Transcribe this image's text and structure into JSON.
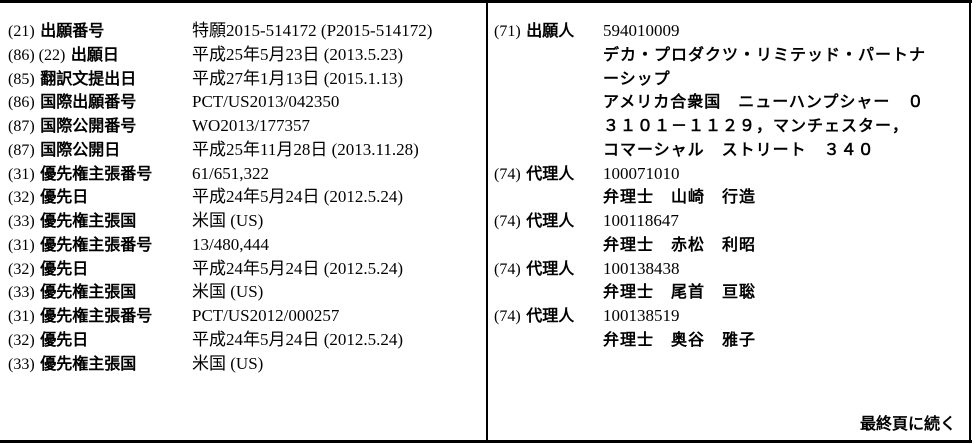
{
  "left_entries": [
    {
      "code": "(21)",
      "label": "出願番号",
      "value": "特願2015-514172 (P2015-514172)"
    },
    {
      "code": "(86) (22)",
      "label": "出願日",
      "value": "平成25年5月23日 (2013.5.23)"
    },
    {
      "code": "(85)",
      "label": "翻訳文提出日",
      "value": "平成27年1月13日 (2015.1.13)"
    },
    {
      "code": "(86)",
      "label": "国際出願番号",
      "value": "PCT/US2013/042350"
    },
    {
      "code": "(87)",
      "label": "国際公開番号",
      "value": "WO2013/177357"
    },
    {
      "code": "(87)",
      "label": "国際公開日",
      "value": "平成25年11月28日 (2013.11.28)"
    },
    {
      "code": "(31)",
      "label": "優先権主張番号",
      "value": "61/651,322"
    },
    {
      "code": "(32)",
      "label": "優先日",
      "value": "平成24年5月24日 (2012.5.24)"
    },
    {
      "code": "(33)",
      "label": "優先権主張国",
      "value": "米国 (US)"
    },
    {
      "code": "(31)",
      "label": "優先権主張番号",
      "value": "13/480,444"
    },
    {
      "code": "(32)",
      "label": "優先日",
      "value": "平成24年5月24日 (2012.5.24)"
    },
    {
      "code": "(33)",
      "label": "優先権主張国",
      "value": "米国 (US)"
    },
    {
      "code": "(31)",
      "label": "優先権主張番号",
      "value": "PCT/US2012/000257"
    },
    {
      "code": "(32)",
      "label": "優先日",
      "value": "平成24年5月24日 (2012.5.24)"
    },
    {
      "code": "(33)",
      "label": "優先権主張国",
      "value": "米国 (US)"
    }
  ],
  "right_entries": [
    {
      "code": "(71)",
      "label": "出願人",
      "value": "594010009",
      "details": [
        "デカ・プロダクツ・リミテッド・パートナ",
        "ーシップ",
        "アメリカ合衆国　ニューハンプシャー　０",
        "３１０１－１１２９，マンチェスター，",
        "コマーシャル　ストリート　３４０"
      ]
    },
    {
      "code": "(74)",
      "label": "代理人",
      "value": "100071010",
      "details": [
        "弁理士　山崎　行造"
      ]
    },
    {
      "code": "(74)",
      "label": "代理人",
      "value": "100118647",
      "details": [
        "弁理士　赤松　利昭"
      ]
    },
    {
      "code": "(74)",
      "label": "代理人",
      "value": "100138438",
      "details": [
        "弁理士　尾首　亘聡"
      ]
    },
    {
      "code": "(74)",
      "label": "代理人",
      "value": "100138519",
      "details": [
        "弁理士　奥谷　雅子"
      ]
    }
  ],
  "continued_note": "最終頁に続く"
}
